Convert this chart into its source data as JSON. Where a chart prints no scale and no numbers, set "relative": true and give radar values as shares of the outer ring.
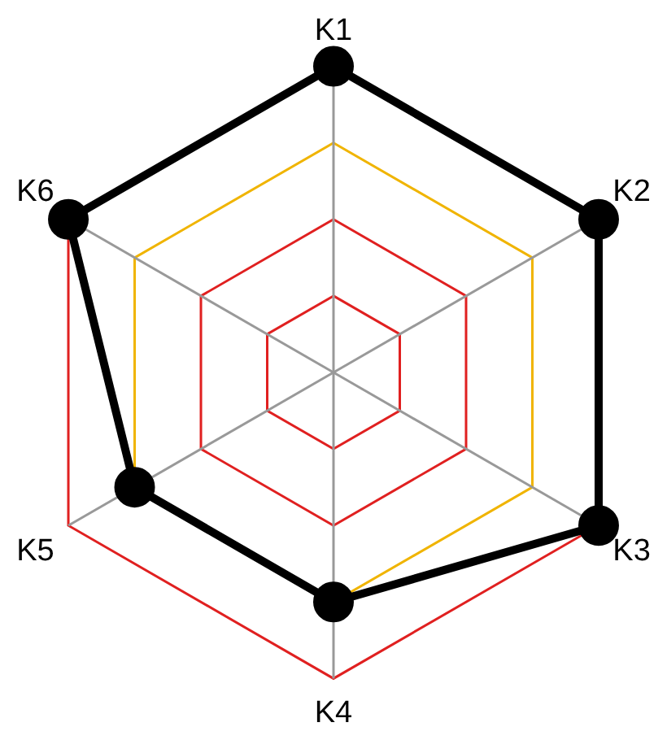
{
  "chart_data": {
    "type": "radar",
    "relative": true,
    "categories": [
      "K1",
      "K2",
      "K3",
      "K4",
      "K5",
      "K6"
    ],
    "series": [
      {
        "color": "#000000",
        "values": [
          1,
          1,
          1,
          0.75,
          0.75,
          1
        ]
      }
    ],
    "marker": "circle",
    "line_style": "solid",
    "legend": false
  }
}
